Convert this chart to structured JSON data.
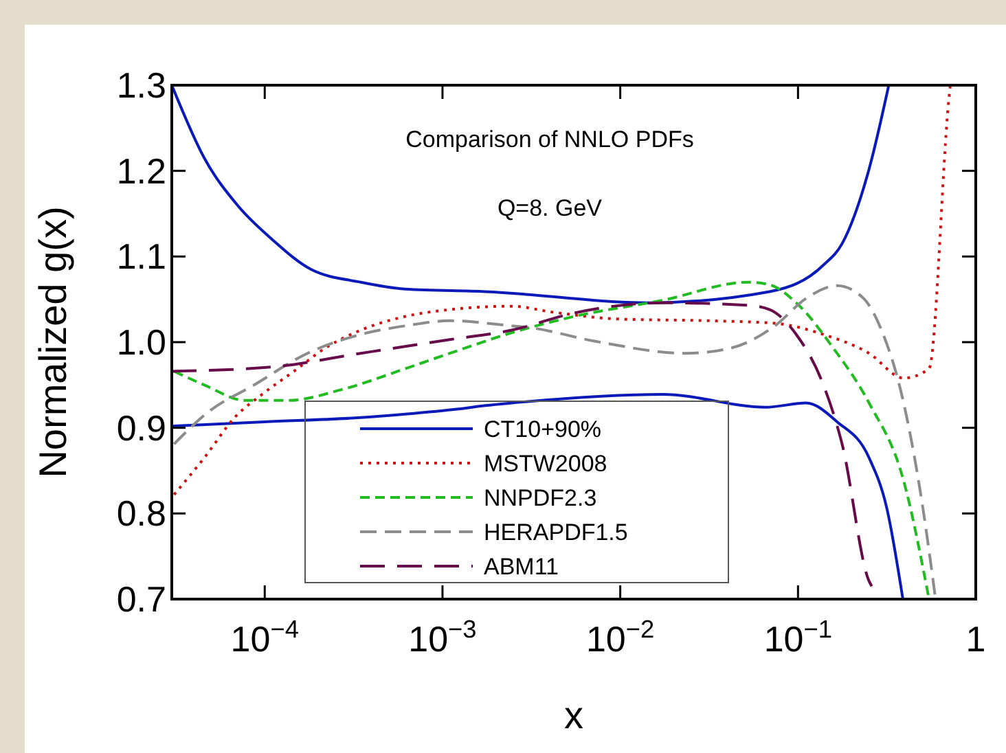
{
  "chart_data": {
    "type": "line",
    "xlabel": "x",
    "ylabel": "Normalized g(x)",
    "log": "x",
    "legend": "bottom",
    "grid": false,
    "annotations": [
      "Comparison of NNLO PDFs",
      "Q=8. GeV"
    ],
    "xlim": [
      3e-05,
      1
    ],
    "xticks": [
      {
        "value": 0.0001,
        "label": "10$^{−4}$"
      },
      {
        "value": 0.001,
        "label": "10$^{−3}$"
      },
      {
        "value": 0.01,
        "label": "10$^{−2}$"
      },
      {
        "value": 0.1,
        "label": "10$^{−1}$"
      },
      1
    ],
    "ylim": [
      0.7,
      1.3
    ],
    "yticks": [
      0.7,
      0.8,
      0.9,
      {
        "value": 1,
        "label": "1.0"
      },
      1.1,
      1.2,
      1.3
    ],
    "series": [
      {
        "name": "CT10+90%",
        "color": "#0a1ab8",
        "line_style": "solid",
        "x": [
          3e-05,
          4.57e-05,
          7.08e-05,
          0.00011,
          0.000182,
          0.000347,
          0.000617,
          0.00174,
          0.0146,
          0.0692,
          0.139,
          0.177,
          0.251,
          0.324
        ],
        "values": [
          1.3,
          1.215,
          1.159,
          1.12,
          1.085,
          1.07,
          1.062,
          1.059,
          1.046,
          1.059,
          1.09,
          1.115,
          1.202,
          1.3
        ]
      },
      {
        "color": "#0a1ab8",
        "line_style": "solid",
        "x": [
          3e-05,
          0.0001,
          0.000347,
          0.000617,
          0.00123,
          0.00174,
          0.00245,
          0.0174,
          0.066,
          0.111,
          0.166,
          0.251,
          0.316,
          0.389
        ],
        "values": [
          0.902,
          0.907,
          0.912,
          0.916,
          0.922,
          0.926,
          0.929,
          0.939,
          0.924,
          0.929,
          0.907,
          0.865,
          0.806,
          0.7
        ]
      },
      {
        "name": "MSTW2008",
        "color": "#cc1111",
        "line_style": "dotted",
        "x": [
          3.09e-05,
          4.57e-05,
          6.84e-05,
          9.66e-05,
          0.000146,
          0.000219,
          0.000347,
          0.000617,
          0.0011,
          0.00245,
          0.00417,
          0.00977,
          0.0316,
          0.0741,
          0.139,
          0.251,
          0.393,
          0.546,
          0.708,
          0.719
        ],
        "values": [
          0.822,
          0.865,
          0.913,
          0.939,
          0.966,
          0.993,
          1.014,
          1.03,
          1.038,
          1.042,
          1.035,
          1.027,
          1.025,
          1.022,
          1.009,
          0.987,
          0.958,
          0.969,
          1.287,
          1.3
        ]
      },
      {
        "name": "NNPDF2.3",
        "color": "#22bb22",
        "line_style": "dashed",
        "x": [
          3.09e-05,
          4.57e-05,
          7.76e-05,
          0.000136,
          0.000275,
          0.000617,
          0.0011,
          0.00245,
          0.0055,
          0.0174,
          0.0525,
          0.0692,
          0.0977,
          0.158,
          0.251,
          0.393,
          0.546
        ],
        "values": [
          0.966,
          0.95,
          0.932,
          0.932,
          0.945,
          0.969,
          0.987,
          1.011,
          1.03,
          1.049,
          1.07,
          1.067,
          1.046,
          0.993,
          0.929,
          0.838,
          0.7
        ]
      },
      {
        "name": "HERAPDF1.5",
        "color": "#8c8c8c",
        "line_style": "dashed",
        "x": [
          3.09e-05,
          4.78e-05,
          8.71e-05,
          0.000174,
          0.000347,
          0.000617,
          0.0011,
          0.00245,
          0.00309,
          0.00724,
          0.0234,
          0.0417,
          0.0741,
          0.111,
          0.166,
          0.234,
          0.295,
          0.393,
          0.501,
          0.594
        ],
        "values": [
          0.881,
          0.918,
          0.95,
          0.987,
          1.009,
          1.019,
          1.025,
          1.019,
          1.017,
          1.001,
          0.987,
          0.993,
          1.019,
          1.051,
          1.066,
          1.051,
          1.014,
          0.929,
          0.81,
          0.7
        ]
      },
      {
        "name": "ABM11",
        "color": "#660a4a",
        "line_style": "dashed",
        "x": [
          3e-05,
          0.00011,
          0.000347,
          0.0011,
          0.00245,
          0.0055,
          0.0174,
          0.0525,
          0.0692,
          0.0977,
          0.139,
          0.177,
          0.251,
          0.26
        ],
        "values": [
          0.966,
          0.971,
          0.987,
          1.003,
          1.014,
          1.034,
          1.046,
          1.043,
          1.038,
          1.009,
          0.95,
          0.881,
          0.721,
          0.715
        ]
      }
    ]
  }
}
